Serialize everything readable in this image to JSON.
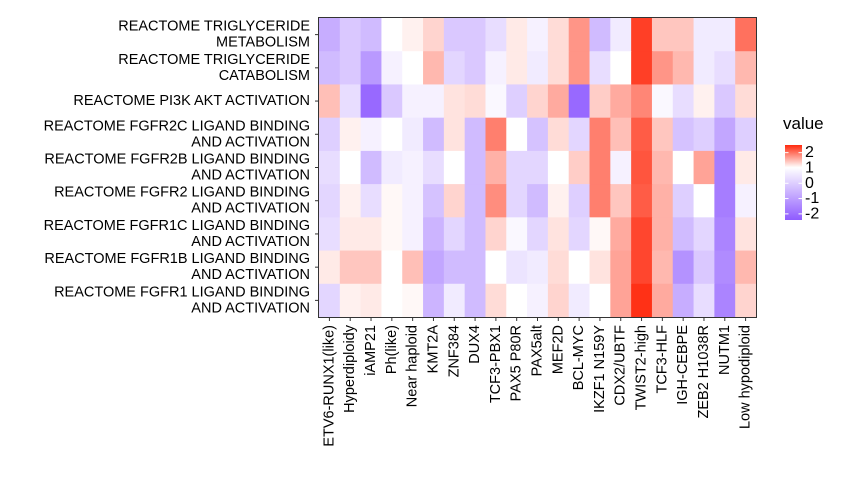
{
  "chart_data": {
    "type": "heatmap",
    "title": "",
    "xlabel": "",
    "ylabel": "",
    "x_categories": [
      "ETV6-RUNX1(like)",
      "Hyperdiploidy",
      "iAMP21",
      "Ph(like)",
      "Near haploid",
      "KMT2A",
      "ZNF384",
      "DUX4",
      "TCF3-PBX1",
      "PAX5 P80R",
      "PAX5alt",
      "MEF2D",
      "BCL-MYC",
      "IKZF1 N159Y",
      "CDX2/UBTF",
      "TWIST2-high",
      "TCF3-HLF",
      "IGH-CEBPE",
      "ZEB2 H1038R",
      "NUTM1",
      "Low hypodiploid"
    ],
    "y_categories": [
      [
        "REACTOME TRIGLYCERIDE",
        "METABOLISM"
      ],
      [
        "REACTOME TRIGLYCERIDE",
        "CATABOLISM"
      ],
      [
        "REACTOME PI3K AKT ACTIVATION"
      ],
      [
        "REACTOME FGFR2C LIGAND BINDING",
        "AND ACTIVATION"
      ],
      [
        "REACTOME FGFR2B LIGAND BINDING",
        "AND ACTIVATION"
      ],
      [
        "REACTOME FGFR2 LIGAND BINDING",
        "AND ACTIVATION"
      ],
      [
        "REACTOME FGFR1C LIGAND BINDING",
        "AND ACTIVATION"
      ],
      [
        "REACTOME FGFR1B LIGAND BINDING",
        "AND ACTIVATION"
      ],
      [
        "REACTOME FGFR1 LIGAND BINDING",
        "AND ACTIVATION"
      ]
    ],
    "values": [
      [
        -1.2,
        -0.8,
        -1.0,
        0.0,
        0.2,
        0.6,
        -0.8,
        -0.8,
        -0.5,
        0.3,
        -0.2,
        0.5,
        1.5,
        -1.0,
        -0.3,
        2.7,
        0.8,
        0.8,
        -0.3,
        -0.3,
        2.0
      ],
      [
        -1.0,
        -0.8,
        -1.5,
        -0.2,
        0.0,
        1.0,
        -0.6,
        -0.8,
        -0.2,
        0.3,
        -0.3,
        0.5,
        1.5,
        -0.5,
        0.0,
        2.7,
        1.5,
        1.0,
        -0.3,
        -0.5,
        1.0
      ],
      [
        0.9,
        -0.5,
        -2.2,
        -0.8,
        -0.2,
        -0.2,
        0.4,
        0.5,
        -0.1,
        -0.7,
        0.6,
        1.2,
        -2.2,
        0.7,
        1.2,
        1.7,
        -0.1,
        -0.5,
        0.2,
        -0.8,
        0.5
      ],
      [
        -0.7,
        0.2,
        -0.2,
        0.0,
        -0.3,
        -1.0,
        0.4,
        -1.0,
        1.8,
        0.0,
        -0.9,
        0.5,
        -0.6,
        1.8,
        0.9,
        2.3,
        0.8,
        -0.9,
        -0.7,
        -1.3,
        -0.7
      ],
      [
        -0.5,
        0.0,
        -1.0,
        -0.3,
        -0.2,
        -0.5,
        0.0,
        -1.0,
        1.1,
        -0.6,
        -0.6,
        0.0,
        0.7,
        1.8,
        -0.2,
        2.4,
        1.0,
        0.0,
        1.3,
        -1.9,
        0.3
      ],
      [
        -0.6,
        0.2,
        -0.5,
        0.1,
        -0.2,
        -0.9,
        0.6,
        -1.0,
        1.6,
        -0.6,
        -1.0,
        0.2,
        -0.7,
        1.8,
        0.8,
        2.3,
        1.1,
        -0.7,
        0.0,
        -1.9,
        -0.2
      ],
      [
        -0.5,
        0.3,
        0.3,
        0.1,
        -0.2,
        -1.1,
        -0.6,
        -1.0,
        0.6,
        -0.1,
        -0.6,
        0.4,
        -0.6,
        0.1,
        1.2,
        2.6,
        1.1,
        -1.0,
        -0.6,
        -1.8,
        0.4
      ],
      [
        0.3,
        0.8,
        0.8,
        0.0,
        0.9,
        -1.3,
        -1.0,
        -1.0,
        0.0,
        -0.4,
        -0.3,
        0.5,
        0.0,
        0.4,
        1.3,
        2.6,
        1.0,
        -1.6,
        -0.8,
        -1.7,
        1.0
      ],
      [
        -0.6,
        0.2,
        0.3,
        0.0,
        0.1,
        -1.1,
        -0.3,
        -1.0,
        0.5,
        0.0,
        -0.2,
        0.6,
        -0.3,
        0.0,
        1.3,
        2.9,
        1.2,
        -1.2,
        -0.5,
        -1.8,
        0.6
      ]
    ],
    "color_scale": {
      "low": "#8F5BFF",
      "mid": "#FFFFFF",
      "high": "#FF2A0E",
      "min": -2.4,
      "max": 3.0
    },
    "legend": {
      "title": "value",
      "ticks": [
        2,
        1,
        0,
        -1,
        -2
      ],
      "tick_labels": [
        "2",
        "1",
        "0",
        "-1",
        "-2"
      ],
      "position": "right"
    },
    "grid": false
  }
}
